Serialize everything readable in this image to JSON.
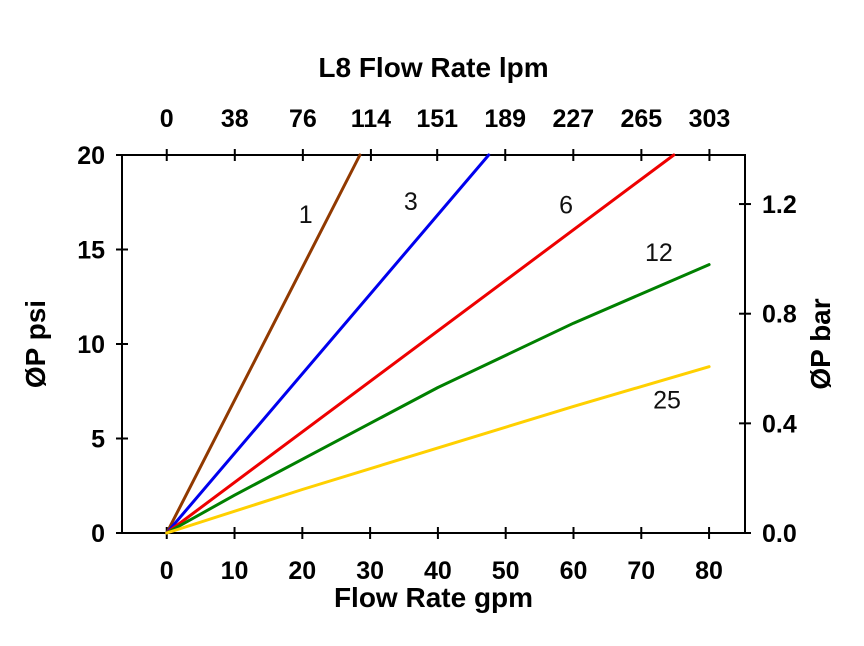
{
  "chart_data": {
    "type": "line",
    "title": "L8 Flow Rate lpm",
    "xlabel": "Flow Rate gpm",
    "ylabel_left": "ØP psi",
    "ylabel_right": "ØP bar",
    "x_bottom_ticks": [
      0,
      10,
      20,
      30,
      40,
      50,
      60,
      70,
      80
    ],
    "x_top_ticks": [
      0,
      38,
      76,
      114,
      151,
      189,
      227,
      265,
      303
    ],
    "y_left_ticks": [
      0,
      5,
      10,
      15,
      20
    ],
    "y_right_ticks": [
      0.0,
      0.4,
      0.8,
      1.2
    ],
    "xlim": [
      -6.6,
      85.3
    ],
    "ylim": [
      0,
      20
    ],
    "lpm_per_gpm": 3.785,
    "psi_per_bar": 14.504,
    "grid": false,
    "legend_position": "labels-on-lines",
    "axis_color": "#000000",
    "series": [
      {
        "name": "1",
        "color": "#913900",
        "points": [
          [
            0,
            0
          ],
          [
            28.5,
            20
          ]
        ],
        "label_pos": [
          20.5,
          16.4
        ]
      },
      {
        "name": "3",
        "color": "#0000EE",
        "points": [
          [
            0,
            0
          ],
          [
            47.5,
            20
          ]
        ],
        "label_pos": [
          36.0,
          17.1
        ]
      },
      {
        "name": "6",
        "color": "#EE0000",
        "points": [
          [
            0,
            0
          ],
          [
            74.8,
            20
          ]
        ],
        "label_pos": [
          58.9,
          16.9
        ]
      },
      {
        "name": "12",
        "color": "#008000",
        "points": [
          [
            0,
            0
          ],
          [
            10,
            2.0
          ],
          [
            20,
            3.9
          ],
          [
            40,
            7.7
          ],
          [
            60,
            11.1
          ],
          [
            80,
            14.2
          ]
        ],
        "label_pos": [
          72.6,
          14.4
        ]
      },
      {
        "name": "25",
        "color": "#FFD000",
        "points": [
          [
            0,
            0
          ],
          [
            20,
            2.3
          ],
          [
            40,
            4.5
          ],
          [
            60,
            6.7
          ],
          [
            80,
            8.8
          ]
        ],
        "label_pos": [
          73.8,
          6.6
        ]
      }
    ]
  }
}
